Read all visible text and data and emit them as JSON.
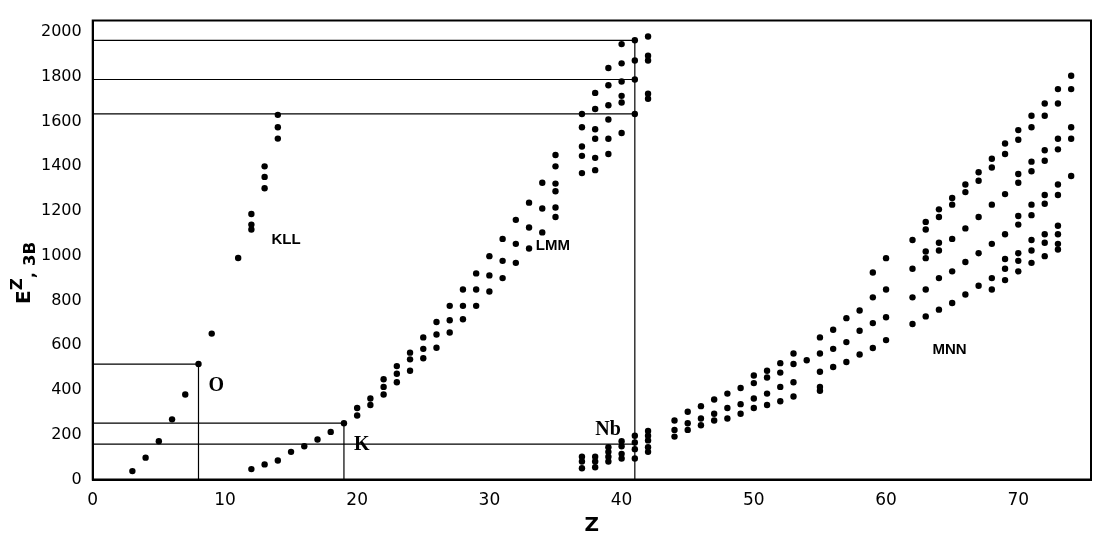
{
  "chart_data": {
    "type": "scatter",
    "xlabel": "Z",
    "ylabel": "E$^{Z}$$_{, 3B}$",
    "xlim": [
      0,
      75.5
    ],
    "xticks": [
      0,
      10,
      20,
      30,
      40,
      50,
      60,
      70
    ],
    "ylim": [
      0,
      2050
    ],
    "yticks": [
      0,
      200,
      400,
      600,
      800,
      1000,
      1200,
      1400,
      1600,
      1800,
      2000
    ],
    "series": [
      {
        "name": "KLL",
        "marker": "circle",
        "color": "#000000",
        "x": [
          3,
          4,
          5,
          6,
          7,
          8,
          9,
          11,
          12,
          12,
          12,
          13,
          13,
          13,
          14,
          14,
          14
        ],
        "values": [
          38,
          98,
          171,
          269,
          380,
          516,
          652,
          990,
          1186,
          1139,
          1117,
          1399,
          1352,
          1301,
          1629,
          1574,
          1523
        ]
      },
      {
        "name": "LMM",
        "marker": "circle",
        "color": "#000000",
        "x": [
          12,
          13,
          14,
          15,
          16,
          17,
          18,
          19,
          20,
          20,
          21,
          21,
          22,
          22,
          22,
          23,
          23,
          23,
          24,
          24,
          24,
          25,
          25,
          25,
          26,
          26,
          26,
          27,
          27,
          27,
          28,
          28,
          28,
          29,
          29,
          29,
          30,
          30,
          30,
          31,
          31,
          31,
          32,
          32,
          32,
          33,
          33,
          33,
          34,
          34,
          34,
          35,
          35,
          35,
          35,
          35,
          35,
          37,
          37,
          37,
          37,
          37,
          38,
          38,
          38,
          38,
          38,
          38,
          39,
          39,
          39,
          39,
          39,
          39,
          40,
          40,
          40,
          40,
          40,
          40,
          41,
          41,
          41,
          41,
          42,
          42,
          42,
          42,
          42
        ],
        "values": [
          47,
          68,
          85,
          124,
          149,
          179,
          213,
          252,
          286,
          320,
          333,
          362,
          380,
          414,
          448,
          435,
          473,
          507,
          486,
          537,
          567,
          542,
          584,
          635,
          589,
          648,
          704,
          657,
          712,
          776,
          716,
          776,
          849,
          776,
          849,
          921,
          840,
          912,
          998,
          900,
          977,
          1075,
          968,
          1053,
          1160,
          1032,
          1126,
          1237,
          1104,
          1211,
          1326,
          1173,
          1215,
          1288,
          1322,
          1399,
          1450,
          1369,
          1446,
          1488,
          1574,
          1633,
          1382,
          1437,
          1522,
          1565,
          1655,
          1727,
          1454,
          1522,
          1608,
          1672,
          1761,
          1838,
          1548,
          1684,
          1714,
          1778,
          1859,
          1945,
          1633,
          1787,
          1872,
          1962,
          1701,
          1723,
          1872,
          1893,
          1979
        ]
      },
      {
        "name": "MNN",
        "marker": "circle",
        "color": "#000000",
        "x": [
          37,
          37,
          37,
          38,
          38,
          38,
          39,
          39,
          39,
          39,
          40,
          40,
          40,
          40,
          41,
          41,
          41,
          41,
          42,
          42,
          42,
          42,
          42,
          44,
          44,
          44,
          45,
          45,
          45,
          46,
          46,
          46,
          47,
          47,
          47,
          48,
          48,
          48,
          49,
          49,
          49,
          50,
          50,
          50,
          50,
          51,
          51,
          51,
          51,
          52,
          52,
          52,
          52,
          53,
          53,
          53,
          53,
          54,
          55,
          55,
          55,
          55,
          55,
          56,
          56,
          56,
          57,
          57,
          57,
          58,
          58,
          58,
          59,
          59,
          59,
          59,
          60,
          60,
          60,
          60,
          62,
          62,
          62,
          62,
          63,
          63,
          63,
          63,
          63,
          63,
          64,
          64,
          64,
          64,
          64,
          64,
          65,
          65,
          65,
          65,
          65,
          66,
          66,
          66,
          66,
          66,
          67,
          67,
          67,
          67,
          67,
          68,
          68,
          68,
          68,
          68,
          68,
          69,
          69,
          69,
          69,
          69,
          69,
          69,
          70,
          70,
          70,
          70,
          70,
          70,
          70,
          70,
          70,
          71,
          71,
          71,
          71,
          71,
          71,
          71,
          71,
          71,
          72,
          72,
          72,
          72,
          72,
          72,
          72,
          72,
          72,
          73,
          73,
          73,
          73,
          73,
          73,
          73,
          73,
          73,
          73,
          74,
          74,
          74,
          74,
          74
        ],
        "values": [
          102,
          81,
          51,
          102,
          81,
          55,
          145,
          124,
          102,
          81,
          171,
          149,
          115,
          94,
          196,
          166,
          136,
          94,
          217,
          196,
          175,
          145,
          124,
          264,
          222,
          192,
          303,
          252,
          222,
          328,
          273,
          243,
          358,
          294,
          264,
          384,
          320,
          273,
          409,
          337,
          294,
          465,
          431,
          362,
          320,
          486,
          456,
          384,
          333,
          520,
          478,
          414,
          350,
          563,
          516,
          435,
          371,
          533,
          635,
          563,
          482,
          414,
          397,
          669,
          584,
          503,
          721,
          614,
          525,
          755,
          665,
          559,
          925,
          814,
          699,
          588,
          989,
          849,
          725,
          623,
          1070,
          942,
          814,
          695,
          1151,
          1117,
          1019,
          989,
          849,
          729,
          1207,
          1173,
          1058,
          1023,
          900,
          759,
          1258,
          1228,
          1075,
          930,
          789,
          1318,
          1284,
          1122,
          972,
          827,
          1373,
          1335,
          1173,
          1011,
          866,
          1433,
          1394,
          1228,
          1053,
          900,
          849,
          1501,
          1454,
          1275,
          1096,
          985,
          942,
          891,
          1561,
          1518,
          1365,
          1326,
          1177,
          1139,
          1011,
          977,
          930,
          1625,
          1574,
          1420,
          1377,
          1228,
          1181,
          1070,
          1023,
          968,
          1680,
          1625,
          1471,
          1424,
          1271,
          1232,
          1096,
          1058,
          998,
          1744,
          1680,
          1522,
          1475,
          1318,
          1271,
          1134,
          1096,
          1053,
          1028,
          1804,
          1744,
          1574,
          1522,
          1356
        ]
      },
      {
        "type": "line",
        "color": "#000000",
        "x": [
          0,
          8,
          8
        ],
        "values": [
          516,
          516,
          0
        ]
      },
      {
        "type": "line",
        "color": "#000000",
        "x": [
          0,
          19,
          19
        ],
        "values": [
          252,
          252,
          0
        ]
      },
      {
        "type": "line",
        "color": "#000000",
        "x": [
          0,
          41,
          41
        ],
        "values": [
          1962,
          1962,
          0
        ]
      },
      {
        "type": "line",
        "color": "#000000",
        "x": [
          0,
          41
        ],
        "values": [
          1787,
          1787
        ]
      },
      {
        "type": "line",
        "color": "#000000",
        "x": [
          0,
          41
        ],
        "values": [
          1633,
          1633
        ]
      },
      {
        "type": "line",
        "color": "#000000",
        "x": [
          0,
          41
        ],
        "values": [
          158,
          158
        ]
      }
    ],
    "annotations": [
      {
        "text": "O",
        "x": 8,
        "y": 516
      },
      {
        "text": "K",
        "x": 19,
        "y": 252
      },
      {
        "text": "Nb",
        "x": 41,
        "y": 158
      }
    ]
  }
}
